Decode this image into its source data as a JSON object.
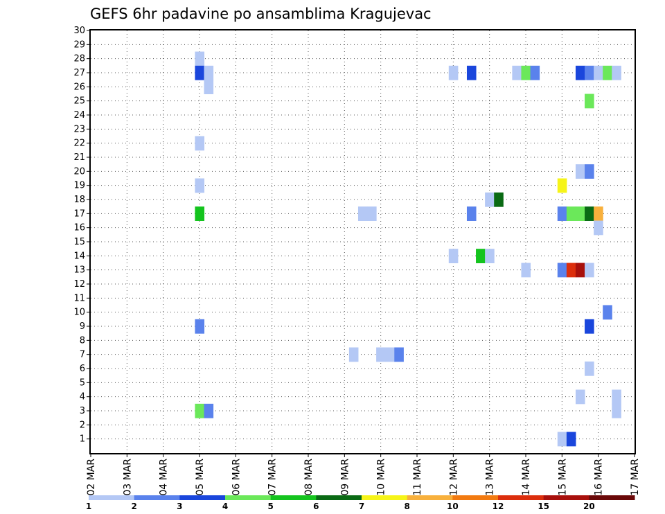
{
  "chart_data": {
    "type": "heatmap",
    "title": "GEFS 6hr padavine po ansamblima Kragujevac",
    "xlabel": "",
    "ylabel": "",
    "x_tick_labels": [
      "02 MAR",
      "03 MAR",
      "04 MAR",
      "05 MAR",
      "06 MAR",
      "07 MAR",
      "08 MAR",
      "09 MAR",
      "10 MAR",
      "11 MAR",
      "12 MAR",
      "13 MAR",
      "14 MAR",
      "15 MAR",
      "16 MAR",
      "17 MAR"
    ],
    "x_range_days": [
      0,
      15
    ],
    "y_range": [
      0,
      30
    ],
    "y_ticks": [
      1,
      2,
      3,
      4,
      5,
      6,
      7,
      8,
      9,
      10,
      11,
      12,
      13,
      14,
      15,
      16,
      17,
      18,
      19,
      20,
      21,
      22,
      23,
      24,
      25,
      26,
      27,
      28,
      29,
      30
    ],
    "grid": true,
    "colorbar": {
      "position": "bottom",
      "labels": [
        "1",
        "2",
        "3",
        "4",
        "5",
        "6",
        "7",
        "8",
        "10",
        "12",
        "15",
        "20"
      ],
      "colors": [
        "#b4c8f5",
        "#5a82ec",
        "#1a46dc",
        "#6be85a",
        "#14c41e",
        "#0a6a14",
        "#f6f418",
        "#f8b03c",
        "#f27a10",
        "#dc2e0c",
        "#a8100c",
        "#6a0808"
      ]
    },
    "cells_description": "x = forecast time in 6-hour steps from 02 MAR 00z, y = ensemble member, v = colour class index",
    "cells": [
      {
        "x": 12,
        "y": 28,
        "v": 0
      },
      {
        "x": 12,
        "y": 27,
        "v": 2
      },
      {
        "x": 13,
        "y": 27,
        "v": 0
      },
      {
        "x": 13,
        "y": 26,
        "v": 0
      },
      {
        "x": 12,
        "y": 22,
        "v": 0
      },
      {
        "x": 12,
        "y": 19,
        "v": 0
      },
      {
        "x": 12,
        "y": 17,
        "v": 4
      },
      {
        "x": 12,
        "y": 9,
        "v": 1
      },
      {
        "x": 12,
        "y": 3,
        "v": 3
      },
      {
        "x": 13,
        "y": 3,
        "v": 1
      },
      {
        "x": 29,
        "y": 7,
        "v": 0
      },
      {
        "x": 30,
        "y": 17,
        "v": 0
      },
      {
        "x": 31,
        "y": 17,
        "v": 0
      },
      {
        "x": 32,
        "y": 7,
        "v": 0
      },
      {
        "x": 33,
        "y": 7,
        "v": 0
      },
      {
        "x": 34,
        "y": 7,
        "v": 1
      },
      {
        "x": 40,
        "y": 27,
        "v": 0
      },
      {
        "x": 40,
        "y": 14,
        "v": 0
      },
      {
        "x": 42,
        "y": 27,
        "v": 2
      },
      {
        "x": 42,
        "y": 17,
        "v": 1
      },
      {
        "x": 44,
        "y": 18,
        "v": 0
      },
      {
        "x": 45,
        "y": 18,
        "v": 5
      },
      {
        "x": 43,
        "y": 14,
        "v": 4
      },
      {
        "x": 44,
        "y": 14,
        "v": 0
      },
      {
        "x": 47,
        "y": 27,
        "v": 0
      },
      {
        "x": 48,
        "y": 27,
        "v": 3
      },
      {
        "x": 49,
        "y": 27,
        "v": 1
      },
      {
        "x": 48,
        "y": 13,
        "v": 0
      },
      {
        "x": 52,
        "y": 19,
        "v": 6
      },
      {
        "x": 52,
        "y": 17,
        "v": 1
      },
      {
        "x": 52,
        "y": 13,
        "v": 1
      },
      {
        "x": 52,
        "y": 1,
        "v": 0
      },
      {
        "x": 53,
        "y": 17,
        "v": 3
      },
      {
        "x": 53,
        "y": 13,
        "v": 9
      },
      {
        "x": 53,
        "y": 1,
        "v": 2
      },
      {
        "x": 54,
        "y": 27,
        "v": 2
      },
      {
        "x": 54,
        "y": 20,
        "v": 0
      },
      {
        "x": 54,
        "y": 17,
        "v": 3
      },
      {
        "x": 54,
        "y": 13,
        "v": 10
      },
      {
        "x": 54,
        "y": 4,
        "v": 0
      },
      {
        "x": 55,
        "y": 27,
        "v": 1
      },
      {
        "x": 55,
        "y": 25,
        "v": 3
      },
      {
        "x": 55,
        "y": 20,
        "v": 1
      },
      {
        "x": 55,
        "y": 17,
        "v": 5
      },
      {
        "x": 55,
        "y": 13,
        "v": 0
      },
      {
        "x": 55,
        "y": 9,
        "v": 2
      },
      {
        "x": 55,
        "y": 6,
        "v": 0
      },
      {
        "x": 56,
        "y": 27,
        "v": 0
      },
      {
        "x": 56,
        "y": 17,
        "v": 7
      },
      {
        "x": 56,
        "y": 16,
        "v": 0
      },
      {
        "x": 57,
        "y": 27,
        "v": 3
      },
      {
        "x": 57,
        "y": 10,
        "v": 1
      },
      {
        "x": 58,
        "y": 27,
        "v": 0
      },
      {
        "x": 58,
        "y": 4,
        "v": 0
      },
      {
        "x": 58,
        "y": 3,
        "v": 0
      }
    ]
  }
}
